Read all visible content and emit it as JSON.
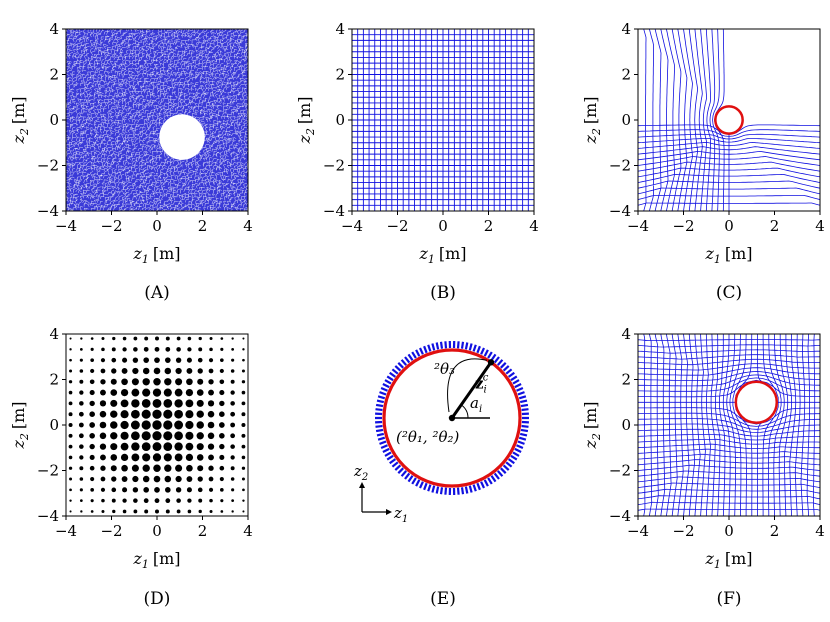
{
  "figure": {
    "panels": [
      {
        "id": "A",
        "caption": "(A)",
        "kind": "random-mesh",
        "xlabel": "z1 [m]",
        "ylabel": "z2 [m]",
        "hole": {
          "center": [
            1.1,
            -0.75
          ],
          "radius": 1.0
        }
      },
      {
        "id": "B",
        "caption": "(B)",
        "kind": "uniform-grid",
        "xlabel": "z1 [m]",
        "ylabel": "z2 [m]"
      },
      {
        "id": "C",
        "caption": "(C)",
        "kind": "deformed-grid",
        "xlabel": "z1 [m]",
        "ylabel": "z2 [m]",
        "hole": {
          "center": [
            0.0,
            0.0
          ],
          "radius": 0.6
        }
      },
      {
        "id": "D",
        "caption": "(D)",
        "kind": "dot-weights",
        "xlabel": "z1 [m]",
        "ylabel": "z2 [m]"
      },
      {
        "id": "E",
        "caption": "(E)",
        "kind": "circle-parametrization"
      },
      {
        "id": "F",
        "caption": "(F)",
        "kind": "deformed-grid",
        "xlabel": "z1 [m]",
        "ylabel": "z2 [m]",
        "hole": {
          "center": [
            1.2,
            1.0
          ],
          "radius": 0.9
        }
      }
    ],
    "axis_ticks": [
      "−4",
      "−2",
      "0",
      "2",
      "4"
    ],
    "axis_labels": {
      "x_var": "z",
      "x_sub": "1",
      "y_var": "z",
      "y_sub": "2",
      "unit": "[m]"
    },
    "annotation_E": {
      "theta3": "²θ₃",
      "zi_bold": "z",
      "zi_sub": "i",
      "zi_sup": "c",
      "ai": "a",
      "ai_sub": "i",
      "center_label": "(²θ₁, ²θ₂)",
      "axis_x": "z",
      "axis_x_sub": "1",
      "axis_y": "z",
      "axis_y_sub": "2"
    },
    "colors": {
      "mesh": "#1010e0",
      "circle": "#e01010",
      "dots": "#000000"
    }
  }
}
